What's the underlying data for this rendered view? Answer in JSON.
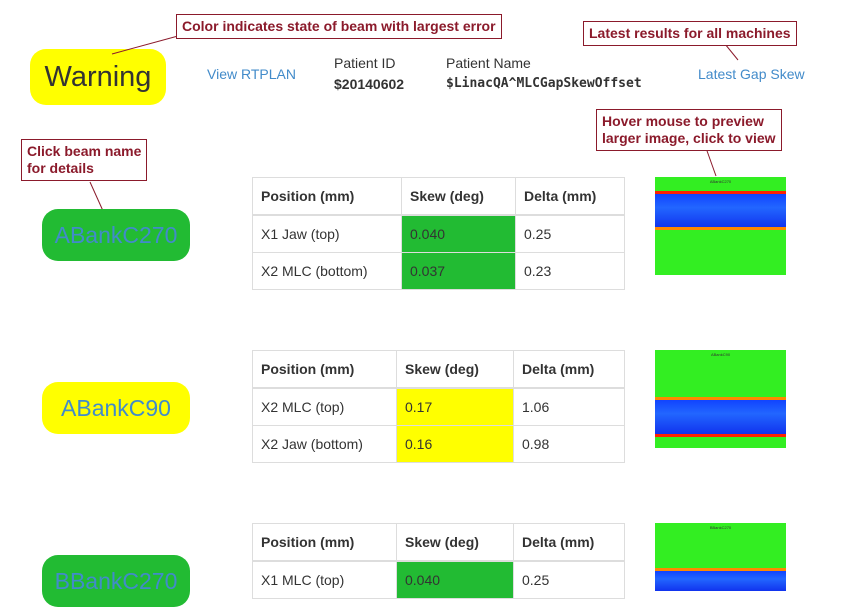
{
  "header": {
    "status": "Warning",
    "status_color": "#ffff00",
    "view_rtplan": "View RTPLAN",
    "patient_id_label": "Patient ID",
    "patient_id": "$20140602",
    "patient_name_label": "Patient Name",
    "patient_name": "$LinacQA^MLCGapSkewOffset",
    "latest_link": "Latest Gap Skew"
  },
  "callouts": {
    "color_state": "Color indicates state of beam with largest error",
    "latest_results": "Latest results for all machines",
    "click_beam_line1": "Click beam name",
    "click_beam_line2": "for details",
    "hover_line1": "Hover mouse to preview",
    "hover_line2": "larger image, click to view"
  },
  "colors": {
    "ok": "#22bb33",
    "warning": "#ffff00",
    "link": "#428bca",
    "callout": "#8b1a2b"
  },
  "beams": [
    {
      "name": "ABankC270",
      "color": "#22bb33",
      "headers": [
        "Position (mm)",
        "Skew (deg)",
        "Delta (mm)"
      ],
      "rows": [
        {
          "position": "X1 Jaw (top)",
          "skew": "0.040",
          "delta": "0.25"
        },
        {
          "position": "X2 MLC (bottom)",
          "skew": "0.037",
          "delta": "0.23"
        }
      ],
      "thumb_title": "ABankC270"
    },
    {
      "name": "ABankC90",
      "color": "#ffff00",
      "headers": [
        "Position (mm)",
        "Skew (deg)",
        "Delta (mm)"
      ],
      "rows": [
        {
          "position": "X2 MLC (top)",
          "skew": "0.17",
          "delta": "1.06"
        },
        {
          "position": "X2 Jaw (bottom)",
          "skew": "0.16",
          "delta": "0.98"
        }
      ],
      "thumb_title": "ABankC90"
    },
    {
      "name": "BBankC270",
      "color": "#22bb33",
      "headers": [
        "Position (mm)",
        "Skew (deg)",
        "Delta (mm)"
      ],
      "rows": [
        {
          "position": "X1 MLC (top)",
          "skew": "0.040",
          "delta": "0.25"
        }
      ],
      "thumb_title": "BBankC270"
    }
  ]
}
